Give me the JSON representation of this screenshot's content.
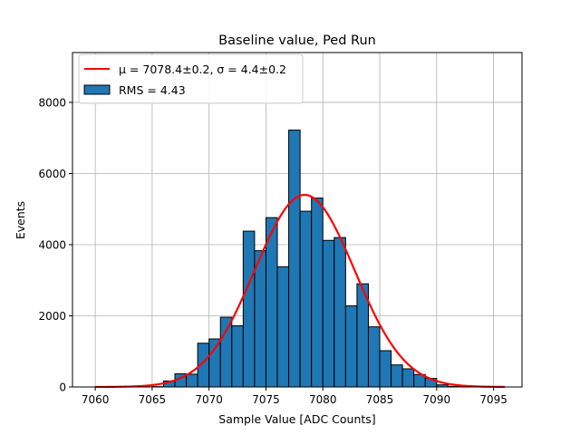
{
  "chart_data": {
    "type": "bar",
    "title": "Baseline value, Ped Run",
    "xlabel": "Sample Value [ADC Counts]",
    "ylabel": "Events",
    "xlim": [
      7058.0,
      7097.5
    ],
    "ylim": [
      0,
      9400
    ],
    "grid": true,
    "legend_placement": "top-left",
    "bin_width": 1.0,
    "bin_start": 7065.0,
    "x_ticks": [
      7060,
      7065,
      7070,
      7075,
      7080,
      7085,
      7090,
      7095
    ],
    "x_tick_labels": [
      "7060",
      "7065",
      "7070",
      "7075",
      "7080",
      "7085",
      "7090",
      "7095"
    ],
    "y_ticks": [
      0,
      2000,
      4000,
      6000,
      8000
    ],
    "y_tick_labels": [
      "0",
      "2000",
      "4000",
      "6000",
      "8000"
    ],
    "histogram": {
      "name": "RMS = 4.43",
      "color": "#1f77b4",
      "edgecolor": "#000000",
      "values": [
        10,
        170,
        370,
        360,
        1230,
        1350,
        1960,
        1720,
        4380,
        3830,
        4760,
        3380,
        7220,
        4940,
        5310,
        4120,
        4200,
        2280,
        2900,
        1690,
        1020,
        620,
        510,
        350,
        240,
        60,
        15
      ]
    },
    "fit": {
      "name": "μ = 7078.4±0.2, σ = 4.4±0.2",
      "color": "#ff0000",
      "mu": 7078.4,
      "sigma": 4.4,
      "amplitude": 5400,
      "x_range": [
        7060,
        7096
      ]
    }
  }
}
